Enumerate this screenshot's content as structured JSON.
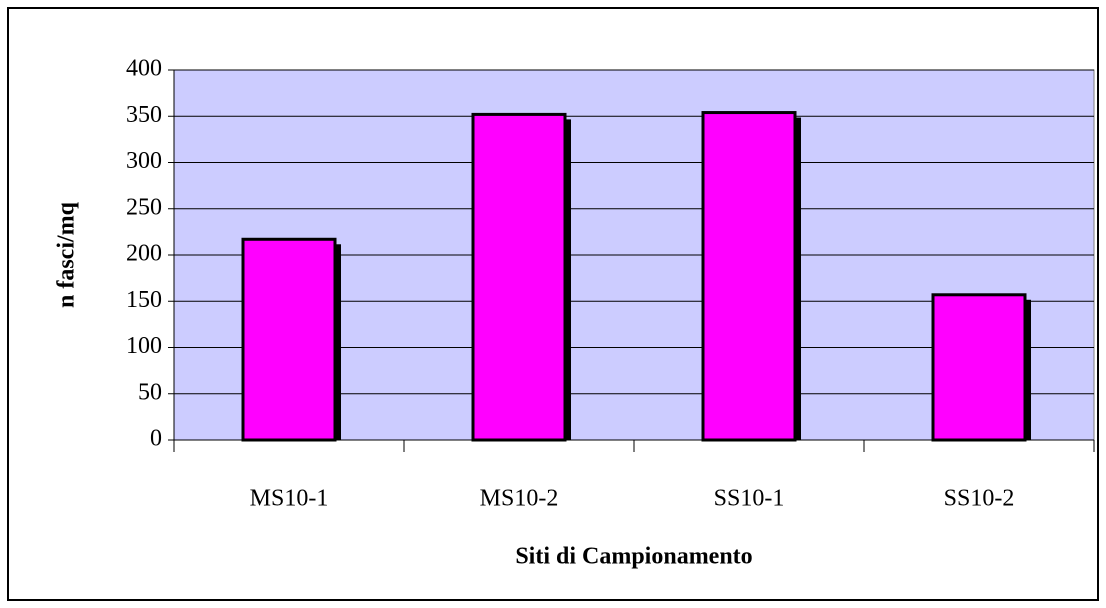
{
  "chart_data": {
    "type": "bar",
    "x_label": "Siti di Campionamento",
    "y_label": "n fasci/mq",
    "categories": [
      "MS10-1",
      "MS10-2",
      "SS10-1",
      "SS10-2"
    ],
    "values": [
      217,
      352,
      354,
      157
    ],
    "color": "#ff00ff",
    "plot_background": "#ccccff",
    "ylim": [
      0,
      400
    ],
    "yticks": [
      0,
      50,
      100,
      150,
      200,
      250,
      300,
      350,
      400
    ],
    "grid": true
  }
}
